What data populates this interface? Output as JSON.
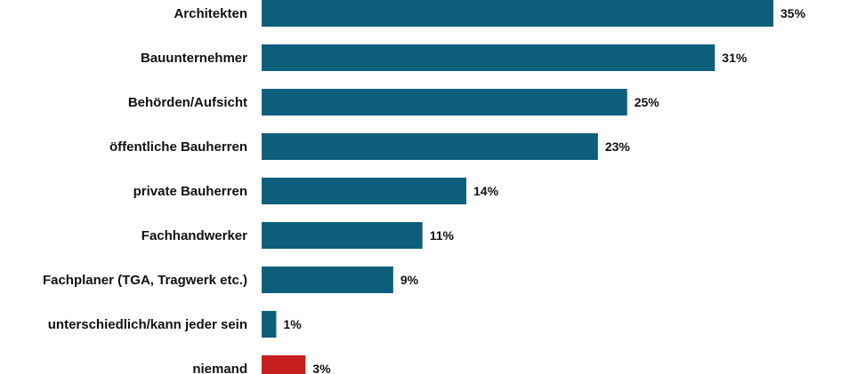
{
  "chart_data": {
    "type": "bar",
    "orientation": "horizontal",
    "categories": [
      "Architekten",
      "Bauunternehmer",
      "Behörden/Aufsicht",
      "öffentliche Bauherren",
      "private Bauherren",
      "Fachhandwerker",
      "Fachplaner (TGA, Tragwerk etc.)",
      "unterschiedlich/kann jeder sein",
      "niemand"
    ],
    "values": [
      35,
      31,
      25,
      23,
      14,
      11,
      9,
      1,
      3
    ],
    "value_labels": [
      "35%",
      "31%",
      "25%",
      "23%",
      "14%",
      "11%",
      "9%",
      "1%",
      "3%"
    ],
    "unit": "%",
    "xlim": [
      0,
      35
    ],
    "grid": false,
    "legend": "none",
    "colors": {
      "default": "#0d5f7c",
      "highlight": "#c41e1e"
    },
    "highlight_categories": [
      "niemand"
    ]
  }
}
